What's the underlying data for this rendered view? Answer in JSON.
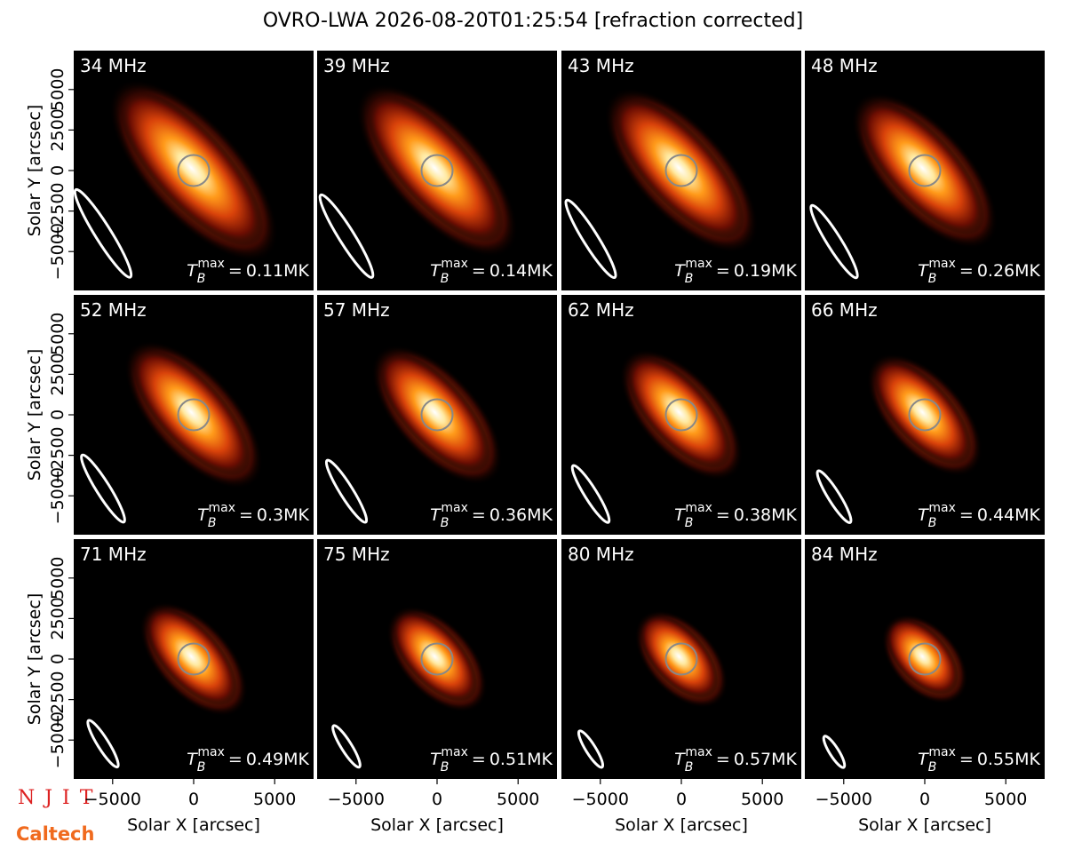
{
  "chart_data": {
    "type": "image-grid",
    "title": "OVRO-LWA 2026-08-20T01:25:54 [refraction corrected]",
    "x_label": "Solar X [arcsec]",
    "y_label": "Solar Y [arcsec]",
    "xlim": [
      -7400,
      7400
    ],
    "ylim": [
      -7400,
      7400
    ],
    "xticks": [
      {
        "value": -5000,
        "label": "−5000"
      },
      0,
      5000
    ],
    "yticks": [
      {
        "value": -5000,
        "label": "−5000"
      },
      {
        "value": -2500,
        "label": "−2500"
      },
      0,
      2500,
      5000
    ],
    "tb_symbol": "T",
    "tb_sub": "B",
    "tb_sup": "max",
    "tb_eq": "=",
    "panels": [
      {
        "label": "34 MHz",
        "tb_max": 0.11,
        "tb_max_label": "0.11MK"
      },
      {
        "label": "39 MHz",
        "tb_max": 0.14,
        "tb_max_label": "0.14MK"
      },
      {
        "label": "43 MHz",
        "tb_max": 0.19,
        "tb_max_label": "0.19MK"
      },
      {
        "label": "48 MHz",
        "tb_max": 0.26,
        "tb_max_label": "0.26MK"
      },
      {
        "label": "52 MHz",
        "tb_max": 0.3,
        "tb_max_label": "0.3MK"
      },
      {
        "label": "57 MHz",
        "tb_max": 0.36,
        "tb_max_label": "0.36MK"
      },
      {
        "label": "62 MHz",
        "tb_max": 0.38,
        "tb_max_label": "0.38MK"
      },
      {
        "label": "66 MHz",
        "tb_max": 0.44,
        "tb_max_label": "0.44MK"
      },
      {
        "label": "71 MHz",
        "tb_max": 0.49,
        "tb_max_label": "0.49MK"
      },
      {
        "label": "75 MHz",
        "tb_max": 0.51,
        "tb_max_label": "0.51MK"
      },
      {
        "label": "80 MHz",
        "tb_max": 0.57,
        "tb_max_label": "0.57MK"
      },
      {
        "label": "84 MHz",
        "tb_max": 0.55,
        "tb_max_label": "0.55MK"
      }
    ]
  },
  "logos": {
    "njit": "N J I T",
    "caltech": "Caltech"
  }
}
